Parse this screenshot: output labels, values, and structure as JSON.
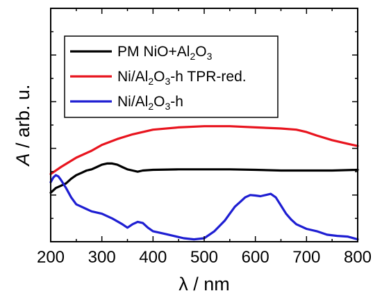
{
  "chart_data": {
    "type": "line",
    "xlabel": "λ / nm",
    "ylabel_symbol": "A",
    "ylabel_rest": " / arb. u.",
    "xlim": [
      200,
      800
    ],
    "ylim": [
      0,
      10
    ],
    "xticks": [
      200,
      300,
      400,
      500,
      600,
      700,
      800
    ],
    "xtick_labels": [
      "200",
      "300",
      "400",
      "500",
      "600",
      "700",
      "800"
    ],
    "y_tick_labels_visible": false,
    "grid": false,
    "legend_placement": "top-left",
    "series": [
      {
        "legend": [
          {
            "t": "PM NiO+Al",
            "sub": false
          },
          {
            "t": "2",
            "sub": true
          },
          {
            "t": "O",
            "sub": false
          },
          {
            "t": "3",
            "sub": true
          }
        ],
        "color": "#000000",
        "x": [
          200,
          210,
          220,
          230,
          240,
          250,
          260,
          270,
          280,
          290,
          300,
          310,
          320,
          330,
          340,
          350,
          360,
          370,
          380,
          400,
          450,
          500,
          550,
          600,
          650,
          700,
          750,
          800
        ],
        "y": [
          2.1,
          2.3,
          2.4,
          2.5,
          2.7,
          2.85,
          2.95,
          3.05,
          3.1,
          3.2,
          3.3,
          3.35,
          3.35,
          3.3,
          3.2,
          3.1,
          3.05,
          3.0,
          3.05,
          3.08,
          3.1,
          3.1,
          3.1,
          3.08,
          3.05,
          3.05,
          3.05,
          3.08
        ]
      },
      {
        "legend": [
          {
            "t": "Ni/Al",
            "sub": false
          },
          {
            "t": "2",
            "sub": true
          },
          {
            "t": "O",
            "sub": false
          },
          {
            "t": "3",
            "sub": true
          },
          {
            "t": "-h TPR-red.",
            "sub": false
          }
        ],
        "color": "#e8141e",
        "x": [
          200,
          220,
          250,
          280,
          300,
          330,
          360,
          400,
          450,
          500,
          550,
          600,
          650,
          680,
          700,
          720,
          750,
          780,
          800
        ],
        "y": [
          2.9,
          3.2,
          3.6,
          3.9,
          4.15,
          4.4,
          4.6,
          4.8,
          4.9,
          4.95,
          4.95,
          4.9,
          4.85,
          4.8,
          4.7,
          4.55,
          4.35,
          4.2,
          4.1
        ]
      },
      {
        "legend": [
          {
            "t": "Ni/Al",
            "sub": false
          },
          {
            "t": "2",
            "sub": true
          },
          {
            "t": "O",
            "sub": false
          },
          {
            "t": "3",
            "sub": true
          },
          {
            "t": "-h",
            "sub": false
          }
        ],
        "color": "#1e1ed2",
        "x": [
          200,
          205,
          210,
          215,
          220,
          230,
          240,
          250,
          260,
          270,
          280,
          300,
          320,
          340,
          350,
          360,
          370,
          380,
          390,
          400,
          420,
          440,
          460,
          480,
          500,
          520,
          540,
          550,
          560,
          570,
          580,
          590,
          600,
          610,
          620,
          630,
          640,
          650,
          660,
          670,
          680,
          700,
          720,
          740,
          760,
          780,
          800
        ],
        "y": [
          2.55,
          2.75,
          2.85,
          2.8,
          2.65,
          2.3,
          1.9,
          1.6,
          1.5,
          1.4,
          1.3,
          1.2,
          1.0,
          0.75,
          0.6,
          0.75,
          0.85,
          0.8,
          0.6,
          0.45,
          0.35,
          0.25,
          0.15,
          0.1,
          0.15,
          0.45,
          0.9,
          1.2,
          1.5,
          1.7,
          1.9,
          2.0,
          1.98,
          1.95,
          2.0,
          2.05,
          1.9,
          1.55,
          1.2,
          0.95,
          0.75,
          0.55,
          0.45,
          0.3,
          0.25,
          0.22,
          0.1
        ]
      }
    ]
  }
}
